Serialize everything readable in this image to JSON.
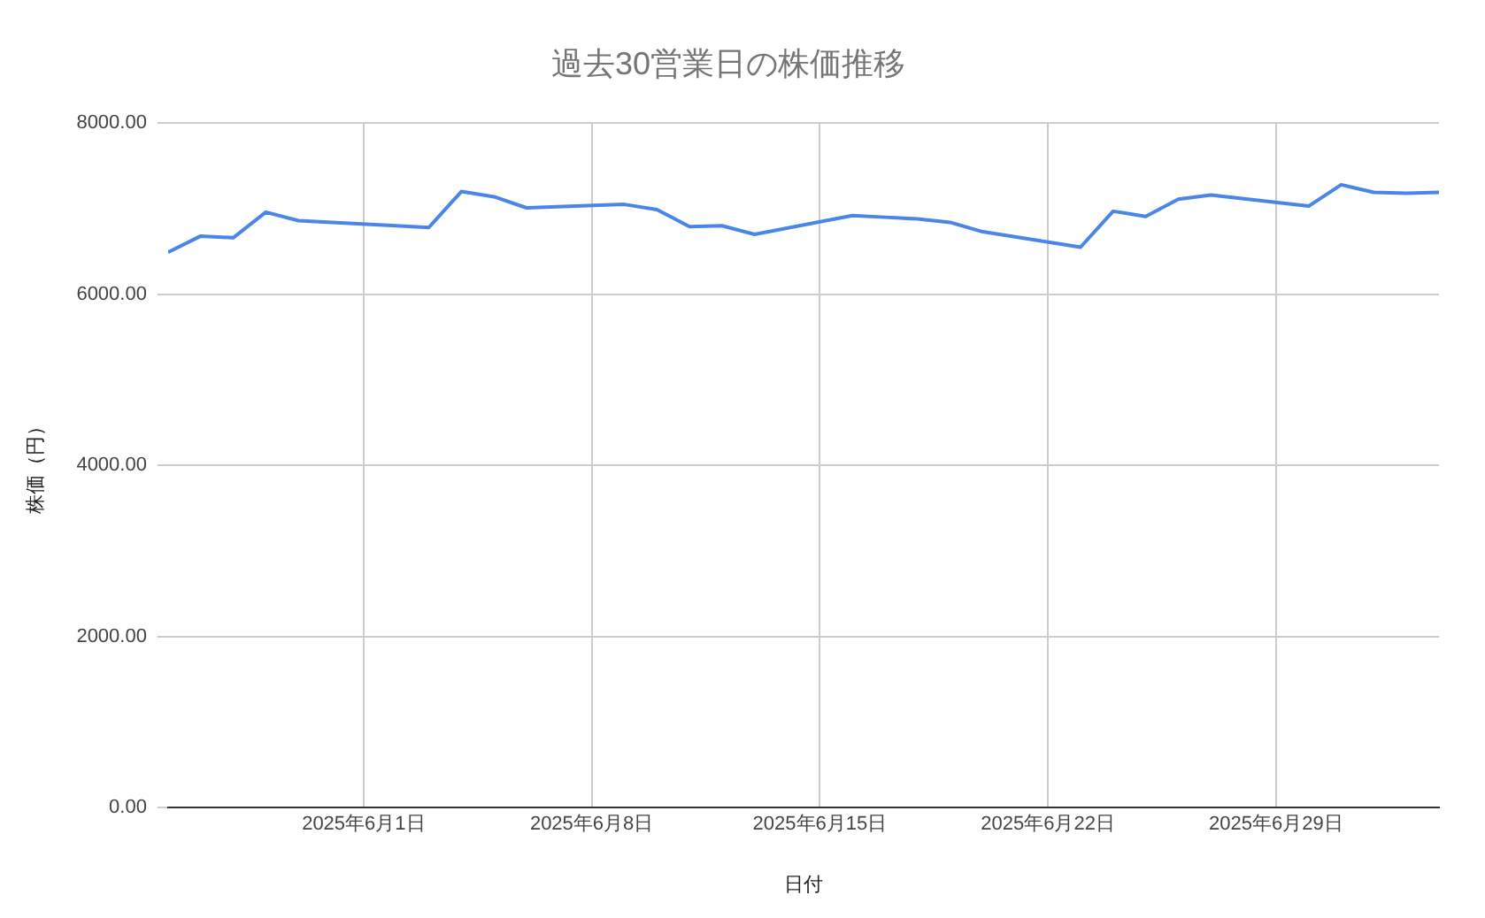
{
  "chart_data": {
    "type": "line",
    "title": "過去30営業日の株価推移",
    "xlabel": "日付",
    "ylabel": "株価（円）",
    "x": [
      "2025-05-26",
      "2025-05-27",
      "2025-05-28",
      "2025-05-29",
      "2025-05-30",
      "2025-06-02",
      "2025-06-03",
      "2025-06-04",
      "2025-06-05",
      "2025-06-06",
      "2025-06-09",
      "2025-06-10",
      "2025-06-11",
      "2025-06-12",
      "2025-06-13",
      "2025-06-16",
      "2025-06-17",
      "2025-06-18",
      "2025-06-19",
      "2025-06-20",
      "2025-06-23",
      "2025-06-24",
      "2025-06-25",
      "2025-06-26",
      "2025-06-27",
      "2025-06-30",
      "2025-07-01",
      "2025-07-02",
      "2025-07-03",
      "2025-07-04"
    ],
    "series": [
      {
        "color": "#4a86e8",
        "values": [
          6490,
          6680,
          6660,
          6960,
          6860,
          6800,
          6780,
          7200,
          7140,
          7010,
          7050,
          6990,
          6790,
          6800,
          6700,
          6920,
          6900,
          6880,
          6840,
          6730,
          6550,
          6970,
          6910,
          7110,
          7160,
          7030,
          7280,
          7190,
          7180,
          7190
        ]
      }
    ],
    "xlim": [
      "2025-05-26",
      "2025-07-04"
    ],
    "xticks": [
      {
        "value": "2025-06-01",
        "label": "2025年6月1日"
      },
      {
        "value": "2025-06-08",
        "label": "2025年6月8日"
      },
      {
        "value": "2025-06-15",
        "label": "2025年6月15日"
      },
      {
        "value": "2025-06-22",
        "label": "2025年6月22日"
      },
      {
        "value": "2025-06-29",
        "label": "2025年6月29日"
      }
    ],
    "ylim": [
      0,
      8000
    ],
    "yticks": [
      {
        "value": 0,
        "label": "0.00"
      },
      {
        "value": 2000,
        "label": "2000.00"
      },
      {
        "value": 4000,
        "label": "4000.00"
      },
      {
        "value": 6000,
        "label": "6000.00"
      },
      {
        "value": 8000,
        "label": "8000.00"
      }
    ],
    "grid": true,
    "legend": false,
    "marker": "none",
    "line_style": "solid"
  }
}
